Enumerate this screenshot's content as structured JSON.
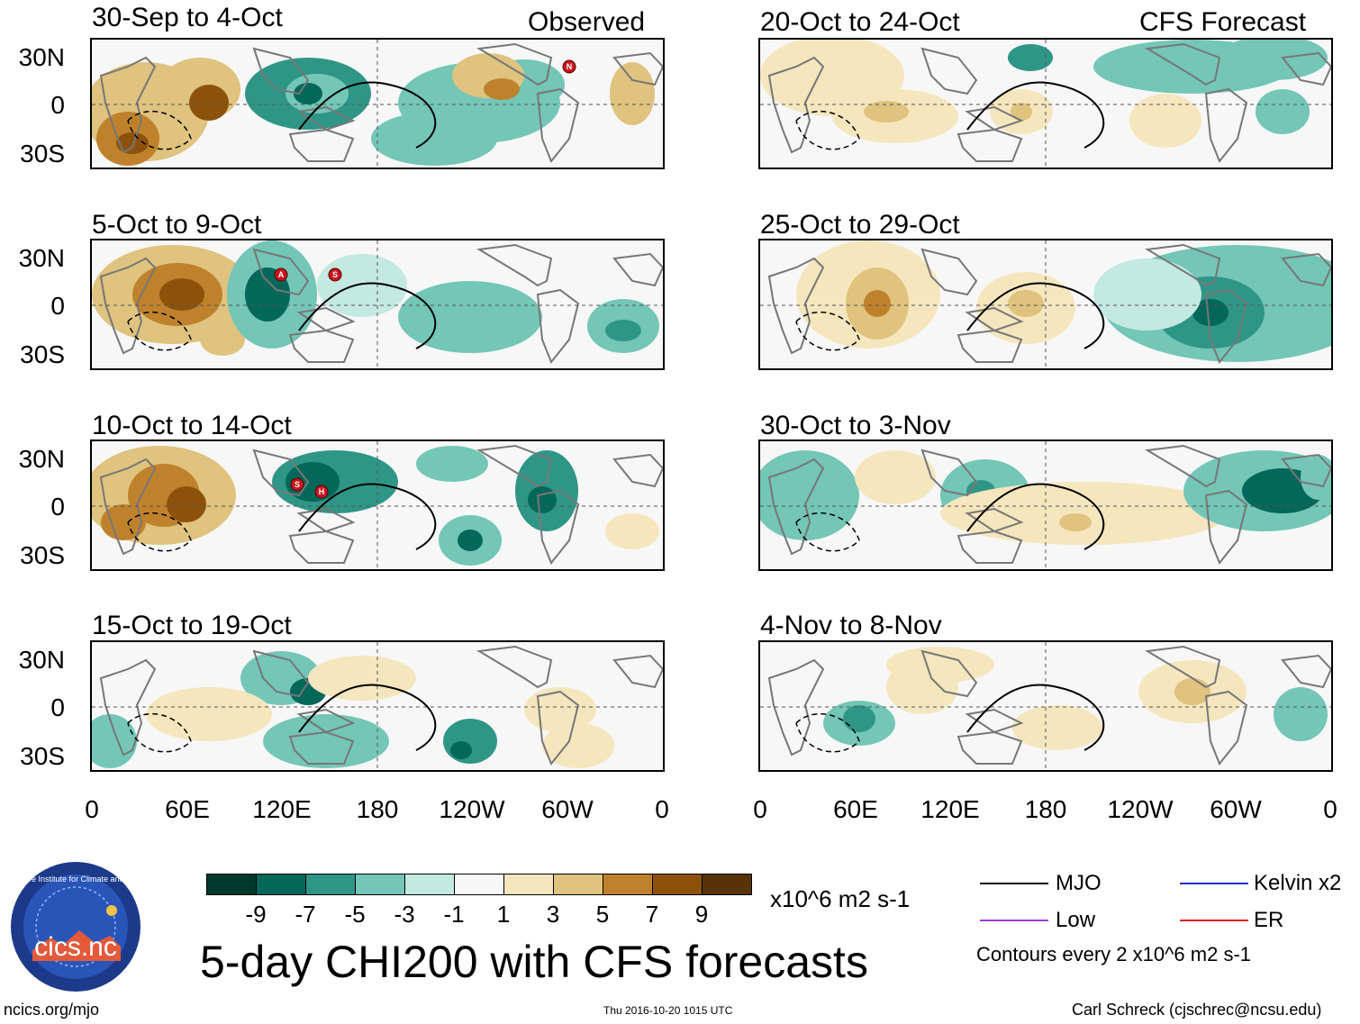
{
  "observed_label": "Observed",
  "forecast_label": "CFS Forecast",
  "lat_ticks": [
    "30N",
    "0",
    "30S"
  ],
  "lon_ticks": [
    "0",
    "60E",
    "120E",
    "180",
    "120W",
    "60W",
    "0"
  ],
  "panels_left": [
    {
      "label": "30-Sep to 4-Oct"
    },
    {
      "label": "5-Oct to 9-Oct"
    },
    {
      "label": "10-Oct to 14-Oct"
    },
    {
      "label": "15-Oct to 19-Oct"
    }
  ],
  "panels_right": [
    {
      "label": "20-Oct to 24-Oct"
    },
    {
      "label": "25-Oct to 29-Oct"
    },
    {
      "label": "30-Oct to 3-Nov"
    },
    {
      "label": "4-Nov to 8-Nov"
    }
  ],
  "storm_markers": [
    {
      "panel": 0,
      "letter": "N"
    },
    {
      "panel": 1,
      "letter": "A"
    },
    {
      "panel": 1,
      "letter": "S"
    },
    {
      "panel": 2,
      "letter": "S"
    },
    {
      "panel": 2,
      "letter": "H"
    }
  ],
  "colorbar": {
    "colors": [
      "#013a2c",
      "#03675a",
      "#2f9687",
      "#74c6b7",
      "#c4e9e1",
      "#f7f7f7",
      "#f5e6be",
      "#dfc37e",
      "#bf822c",
      "#8c520b",
      "#573307"
    ],
    "ticks": [
      "-9",
      "-7",
      "-5",
      "-3",
      "-1",
      "1",
      "3",
      "5",
      "7",
      "9"
    ],
    "units": "x10^6 m2 s-1"
  },
  "title": "5-day CHI200 with CFS forecasts",
  "legend": {
    "mjo": {
      "label": "MJO",
      "color": "#000000"
    },
    "kelvin": {
      "label": "Kelvin x2",
      "color": "#1f2fd0"
    },
    "low": {
      "label": "Low",
      "color": "#9b3fd8"
    },
    "er": {
      "label": "ER",
      "color": "#e02020"
    },
    "contours": "Contours every 2 x10^6 m2 s-1"
  },
  "logo_text": "cics.nc",
  "logo_ring": "Cooperative Institute for Climate and Satellites",
  "footer": {
    "url": "ncics.org/mjo",
    "timestamp": "Thu 2016-10-20 1015 UTC",
    "author": "Carl Schreck (cjschrec@ncsu.edu)"
  }
}
